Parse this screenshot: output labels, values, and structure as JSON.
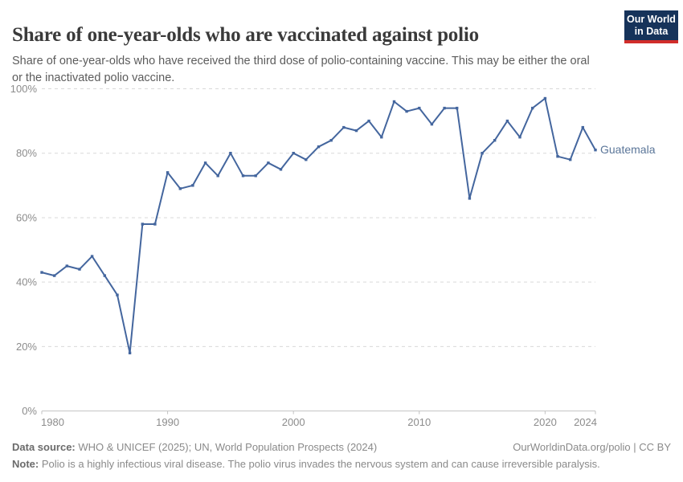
{
  "header": {
    "title": "Share of one-year-olds who are vaccinated against polio",
    "subtitle": "Share of one-year-olds who have received the third dose of polio-containing vaccine. This may be either the oral or the inactivated polio vaccine.",
    "logo": {
      "line1": "Our World",
      "line2": "in Data"
    }
  },
  "chart_data": {
    "type": "line",
    "title": "Share of one-year-olds who are vaccinated against polio",
    "x": [
      1980,
      1981,
      1982,
      1983,
      1984,
      1985,
      1986,
      1987,
      1988,
      1989,
      1990,
      1991,
      1992,
      1993,
      1994,
      1995,
      1996,
      1997,
      1998,
      1999,
      2000,
      2001,
      2002,
      2003,
      2004,
      2005,
      2006,
      2007,
      2008,
      2009,
      2010,
      2011,
      2012,
      2013,
      2014,
      2015,
      2016,
      2017,
      2018,
      2019,
      2020,
      2021,
      2022,
      2023,
      2024
    ],
    "series": [
      {
        "name": "Guatemala",
        "values": [
          43,
          42,
          45,
          44,
          48,
          42,
          36,
          18,
          58,
          58,
          74,
          69,
          70,
          77,
          73,
          80,
          73,
          73,
          77,
          75,
          80,
          78,
          82,
          84,
          88,
          87,
          90,
          85,
          96,
          93,
          94,
          89,
          94,
          94,
          66,
          80,
          84,
          90,
          85,
          94,
          97,
          79,
          78,
          88,
          81
        ]
      }
    ],
    "xlabel": "",
    "ylabel": "",
    "ylim": [
      0,
      100
    ],
    "xlim": [
      1980,
      2024
    ],
    "yticks": [
      0,
      20,
      40,
      60,
      80,
      100
    ],
    "ytick_labels": [
      "0%",
      "20%",
      "40%",
      "60%",
      "80%",
      "100%"
    ],
    "xticks": [
      1980,
      1990,
      2000,
      2010,
      2020,
      2024
    ],
    "xtick_labels": [
      "1980",
      "1990",
      "2000",
      "2010",
      "2020",
      "2024"
    ],
    "grid": "horizontal-dashed",
    "legend_position": "end-of-line",
    "end_label": "Guatemala"
  },
  "colors": {
    "line": "#44669e",
    "end_label": "#5b7699",
    "logo_bg": "#16335a",
    "logo_red": "#d12d2a"
  },
  "footer": {
    "data_source_label": "Data source:",
    "data_source_text": " WHO & UNICEF (2025); UN, World Population Prospects (2024)",
    "attribution": "OurWorldinData.org/polio | CC BY",
    "note_label": "Note:",
    "note_text": " Polio is a highly infectious viral disease. The polio virus invades the nervous system and can cause irreversible paralysis."
  }
}
